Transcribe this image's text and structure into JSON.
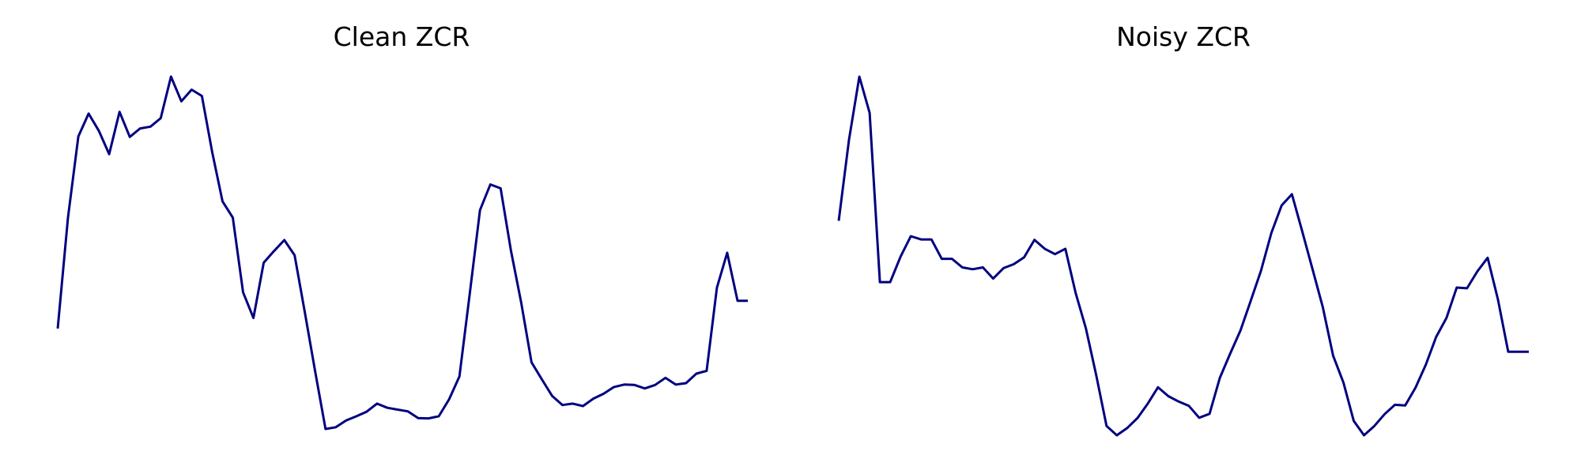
{
  "colors": {
    "line": "#000080",
    "background": "#ffffff"
  },
  "chart_data": [
    {
      "type": "line",
      "title": "Clean ZCR",
      "xlabel": "",
      "ylabel": "",
      "grid": false,
      "axes_visible": false,
      "x": [
        0,
        1,
        2,
        3,
        4,
        5,
        6,
        7,
        8,
        9,
        10,
        11,
        12,
        13,
        14,
        15,
        16,
        17,
        18,
        19,
        20,
        21,
        22,
        23,
        24,
        25,
        26,
        27,
        28,
        29,
        30,
        31,
        32,
        33,
        34,
        35,
        36,
        37,
        38,
        39,
        40,
        41,
        42,
        43,
        44,
        45,
        46,
        47,
        48,
        49,
        50,
        51,
        52,
        53,
        54,
        55,
        56,
        57,
        58,
        59,
        60,
        61,
        62,
        63,
        64,
        65,
        66,
        67
      ],
      "series": [
        {
          "values": [
            0.285,
            0.6,
            0.83,
            0.895,
            0.846,
            0.78,
            0.9,
            0.829,
            0.853,
            0.858,
            0.882,
            1.0,
            0.93,
            0.963,
            0.945,
            0.786,
            0.646,
            0.6,
            0.388,
            0.315,
            0.472,
            0.505,
            0.536,
            0.493,
            0.33,
            0.163,
            0.0,
            0.005,
            0.024,
            0.036,
            0.049,
            0.072,
            0.06,
            0.055,
            0.05,
            0.031,
            0.03,
            0.036,
            0.084,
            0.149,
            0.383,
            0.621,
            0.694,
            0.683,
            0.507,
            0.359,
            0.189,
            0.141,
            0.094,
            0.068,
            0.072,
            0.065,
            0.086,
            0.1,
            0.119,
            0.126,
            0.125,
            0.115,
            0.125,
            0.145,
            0.126,
            0.13,
            0.157,
            0.165,
            0.401,
            0.5,
            0.364,
            0.364
          ]
        }
      ]
    },
    {
      "type": "line",
      "title": "Noisy ZCR",
      "xlabel": "",
      "ylabel": "",
      "grid": false,
      "axes_visible": false,
      "x": [
        0,
        1,
        2,
        3,
        4,
        5,
        6,
        7,
        8,
        9,
        10,
        11,
        12,
        13,
        14,
        15,
        16,
        17,
        18,
        19,
        20,
        21,
        22,
        23,
        24,
        25,
        26,
        27,
        28,
        29,
        30,
        31,
        32,
        33,
        34,
        35,
        36,
        37,
        38,
        39,
        40,
        41,
        42,
        43,
        44,
        45,
        46,
        47,
        48,
        49,
        50,
        51,
        52,
        53,
        54,
        55,
        56,
        57,
        58,
        59,
        60,
        61,
        62,
        63,
        64,
        65,
        66,
        67
      ],
      "series": [
        {
          "values": [
            0.598,
            0.824,
            1.0,
            0.899,
            0.427,
            0.427,
            0.498,
            0.555,
            0.546,
            0.546,
            0.492,
            0.492,
            0.468,
            0.463,
            0.468,
            0.437,
            0.466,
            0.477,
            0.496,
            0.545,
            0.52,
            0.505,
            0.52,
            0.397,
            0.298,
            0.168,
            0.026,
            0.0,
            0.02,
            0.048,
            0.088,
            0.134,
            0.109,
            0.094,
            0.082,
            0.049,
            0.06,
            0.16,
            0.227,
            0.292,
            0.375,
            0.459,
            0.564,
            0.641,
            0.672,
            0.569,
            0.463,
            0.357,
            0.222,
            0.147,
            0.04,
            0.0,
            0.026,
            0.059,
            0.085,
            0.083,
            0.133,
            0.197,
            0.274,
            0.327,
            0.412,
            0.41,
            0.457,
            0.495,
            0.379,
            0.233,
            0.233,
            0.233
          ]
        }
      ]
    }
  ]
}
